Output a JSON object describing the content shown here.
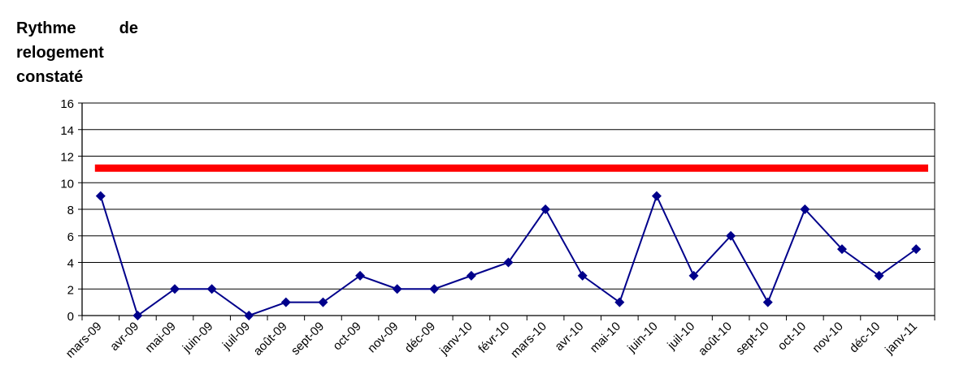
{
  "chart_data": {
    "type": "line",
    "title": "Rythme de relogement constaté",
    "xlabel": "",
    "ylabel": "",
    "ylim": [
      0,
      16
    ],
    "yticks": [
      0,
      2,
      4,
      6,
      8,
      10,
      12,
      14,
      16
    ],
    "grid": true,
    "legend": "none",
    "categories": [
      "mars-09",
      "avr-09",
      "mai-09",
      "juin-09",
      "juil-09",
      "août-09",
      "sept-09",
      "oct-09",
      "nov-09",
      "déc-09",
      "janv-10",
      "févr-10",
      "mars-10",
      "avr-10",
      "mai-10",
      "juin-10",
      "juil-10",
      "août-10",
      "sept-10",
      "oct-10",
      "nov-10",
      "déc-10",
      "janv-11"
    ],
    "series": [
      {
        "values": [
          9,
          0,
          2,
          2,
          0,
          1,
          1,
          3,
          2,
          2,
          3,
          4,
          8,
          3,
          1,
          9,
          3,
          6,
          1,
          8,
          5,
          3,
          5
        ],
        "color": "#00008b",
        "marker": "diamond"
      }
    ],
    "reference_line": {
      "value": 11.1,
      "color": "#ff0000"
    }
  }
}
